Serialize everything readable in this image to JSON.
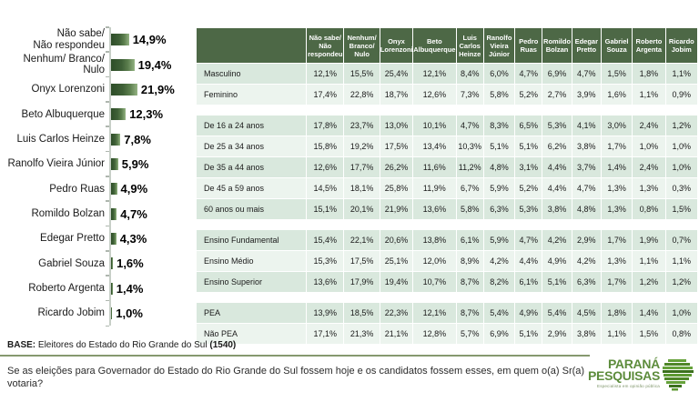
{
  "slide": {
    "base": {
      "label": "BASE:",
      "text": " Eleitores do Estado do Rio Grande do Sul ",
      "count": "(1540)"
    },
    "question": "Se as eleições para Governador do Estado do Rio Grande do Sul fossem hoje e os candidatos fossem esses, em quem o(a) Sr(a) votaria?",
    "logo": {
      "line1": "PARANÁ",
      "line2": "PESQUISAS",
      "tagline": "Especialista em opinião pública"
    }
  },
  "colors": {
    "header_green": "#4d6846",
    "row_dark": "#d9e8dd",
    "row_light": "#ecf4ee",
    "bar_dark_green": "#2d4d28",
    "bar_light_green": "#94b383",
    "logo_green": "#5d8c3c",
    "separator_green": "#86996f"
  },
  "chart_data": [
    {
      "type": "bar",
      "orientation": "horizontal",
      "unit": "%",
      "categories": [
        "Não sabe/\nNão respondeu",
        "Nenhum/ Branco/\nNulo",
        "Onyx Lorenzoni",
        "Beto Albuquerque",
        "Luis Carlos Heinze",
        "Ranolfo Vieira Júnior",
        "Pedro Ruas",
        "Romildo Bolzan",
        "Edegar Pretto",
        "Gabriel Souza",
        "Roberto Argenta",
        "Ricardo Jobim"
      ],
      "values": [
        14.9,
        19.4,
        21.9,
        12.3,
        7.8,
        5.9,
        4.9,
        4.7,
        4.3,
        1.6,
        1.4,
        1.0
      ],
      "value_labels": [
        "14,9%",
        "19,4%",
        "21,9%",
        "12,3%",
        "7,8%",
        "5,9%",
        "4,9%",
        "4,7%",
        "4,3%",
        "1,6%",
        "1,4%",
        "1,0%"
      ],
      "xlim": [
        0,
        25
      ],
      "title": "",
      "xlabel": "",
      "ylabel": ""
    },
    {
      "type": "table",
      "columns": [
        "Não sabe/\nNão\nrespondeu",
        "Nenhum/\nBranco/\nNulo",
        "Onyx\nLorenzoni",
        "Beto\nAlbuquerque",
        "Luis\nCarlos\nHeinze",
        "Ranolfo\nVieira\nJúnior",
        "Pedro\nRuas",
        "Romildo\nBolzan",
        "Edegar\nPretto",
        "Gabriel\nSouza",
        "Roberto\nArgenta",
        "Ricardo\nJobim"
      ],
      "row_groups": [
        {
          "name": "sexo",
          "rows": [
            {
              "label": "Masculino",
              "values": [
                "12,1%",
                "15,5%",
                "25,4%",
                "12,1%",
                "8,4%",
                "6,0%",
                "4,7%",
                "6,9%",
                "4,7%",
                "1,5%",
                "1,8%",
                "1,1%"
              ]
            },
            {
              "label": "Feminino",
              "values": [
                "17,4%",
                "22,8%",
                "18,7%",
                "12,6%",
                "7,3%",
                "5,8%",
                "5,2%",
                "2,7%",
                "3,9%",
                "1,6%",
                "1,1%",
                "0,9%"
              ]
            }
          ]
        },
        {
          "name": "faixa-etaria",
          "rows": [
            {
              "label": "De 16 a 24 anos",
              "values": [
                "17,8%",
                "23,7%",
                "13,0%",
                "10,1%",
                "4,7%",
                "8,3%",
                "6,5%",
                "5,3%",
                "4,1%",
                "3,0%",
                "2,4%",
                "1,2%"
              ]
            },
            {
              "label": "De 25 a 34 anos",
              "values": [
                "15,8%",
                "19,2%",
                "17,5%",
                "13,4%",
                "10,3%",
                "5,1%",
                "5,1%",
                "6,2%",
                "3,8%",
                "1,7%",
                "1,0%",
                "1,0%"
              ]
            },
            {
              "label": "De 35 a 44 anos",
              "values": [
                "12,6%",
                "17,7%",
                "26,2%",
                "11,6%",
                "11,2%",
                "4,8%",
                "3,1%",
                "4,4%",
                "3,7%",
                "1,4%",
                "2,4%",
                "1,0%"
              ]
            },
            {
              "label": "De 45 a 59 anos",
              "values": [
                "14,5%",
                "18,1%",
                "25,8%",
                "11,9%",
                "6,7%",
                "5,9%",
                "5,2%",
                "4,4%",
                "4,7%",
                "1,3%",
                "1,3%",
                "0,3%"
              ]
            },
            {
              "label": "60 anos ou mais",
              "values": [
                "15,1%",
                "20,1%",
                "21,9%",
                "13,6%",
                "5,8%",
                "6,3%",
                "5,3%",
                "3,8%",
                "4,8%",
                "1,3%",
                "0,8%",
                "1,5%"
              ]
            }
          ]
        },
        {
          "name": "escolaridade",
          "rows": [
            {
              "label": "Ensino Fundamental",
              "values": [
                "15,4%",
                "22,1%",
                "20,6%",
                "13,8%",
                "6,1%",
                "5,9%",
                "4,7%",
                "4,2%",
                "2,9%",
                "1,7%",
                "1,9%",
                "0,7%"
              ]
            },
            {
              "label": "Ensino Médio",
              "values": [
                "15,3%",
                "17,5%",
                "25,1%",
                "12,0%",
                "8,9%",
                "4,2%",
                "4,4%",
                "4,9%",
                "4,2%",
                "1,3%",
                "1,1%",
                "1,1%"
              ]
            },
            {
              "label": "Ensino Superior",
              "values": [
                "13,6%",
                "17,9%",
                "19,4%",
                "10,7%",
                "8,7%",
                "8,2%",
                "6,1%",
                "5,1%",
                "6,3%",
                "1,7%",
                "1,2%",
                "1,2%"
              ]
            }
          ]
        },
        {
          "name": "pea",
          "rows": [
            {
              "label": "PEA",
              "values": [
                "13,9%",
                "18,5%",
                "22,3%",
                "12,1%",
                "8,7%",
                "5,4%",
                "4,9%",
                "5,4%",
                "4,5%",
                "1,8%",
                "1,4%",
                "1,0%"
              ]
            },
            {
              "label": "Não PEA",
              "values": [
                "17,1%",
                "21,3%",
                "21,1%",
                "12,8%",
                "5,7%",
                "6,9%",
                "5,1%",
                "2,9%",
                "3,8%",
                "1,1%",
                "1,5%",
                "0,8%"
              ]
            }
          ]
        }
      ]
    }
  ]
}
